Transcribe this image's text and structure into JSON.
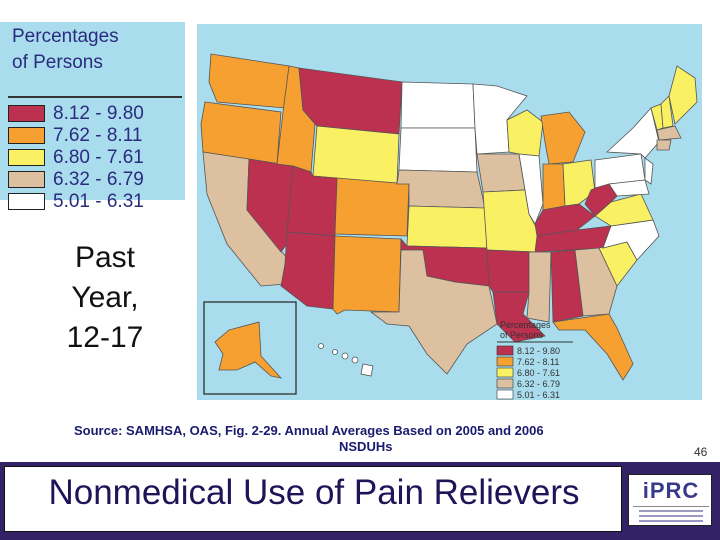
{
  "legend": {
    "title_line1": "Percentages",
    "title_line2": "of Persons",
    "items": [
      {
        "label": "8.12 - 9.80",
        "color": "#bc3050"
      },
      {
        "label": "7.62 - 8.11",
        "color": "#f5a030"
      },
      {
        "label": "6.80 - 7.61",
        "color": "#faf064"
      },
      {
        "label": "6.32 - 6.79",
        "color": "#dcc0a0"
      },
      {
        "label": "5.01 - 6.31",
        "color": "#ffffff"
      }
    ]
  },
  "map_legend": {
    "title_line1": "Percentages",
    "title_line2": "of Persons",
    "items": [
      "8.12 - 9.80",
      "7.62 - 8.11",
      "6.80 - 7.61",
      "6.32 - 6.79",
      "5.01 - 6.31"
    ]
  },
  "side_label": {
    "line1": "Past",
    "line2": "Year,",
    "line3": "12-17"
  },
  "source": {
    "line1": "Source:  SAMHSA, OAS, Fig. 2-29.    Annual Averages Based on 2005 and 2006",
    "line2": "NSDUHs"
  },
  "page_number": "46",
  "title": "Nonmedical Use of Pain Relievers",
  "logo": {
    "text": "iPRC"
  },
  "colors": {
    "water": "#a9dcec",
    "title_bar": "#332266"
  }
}
